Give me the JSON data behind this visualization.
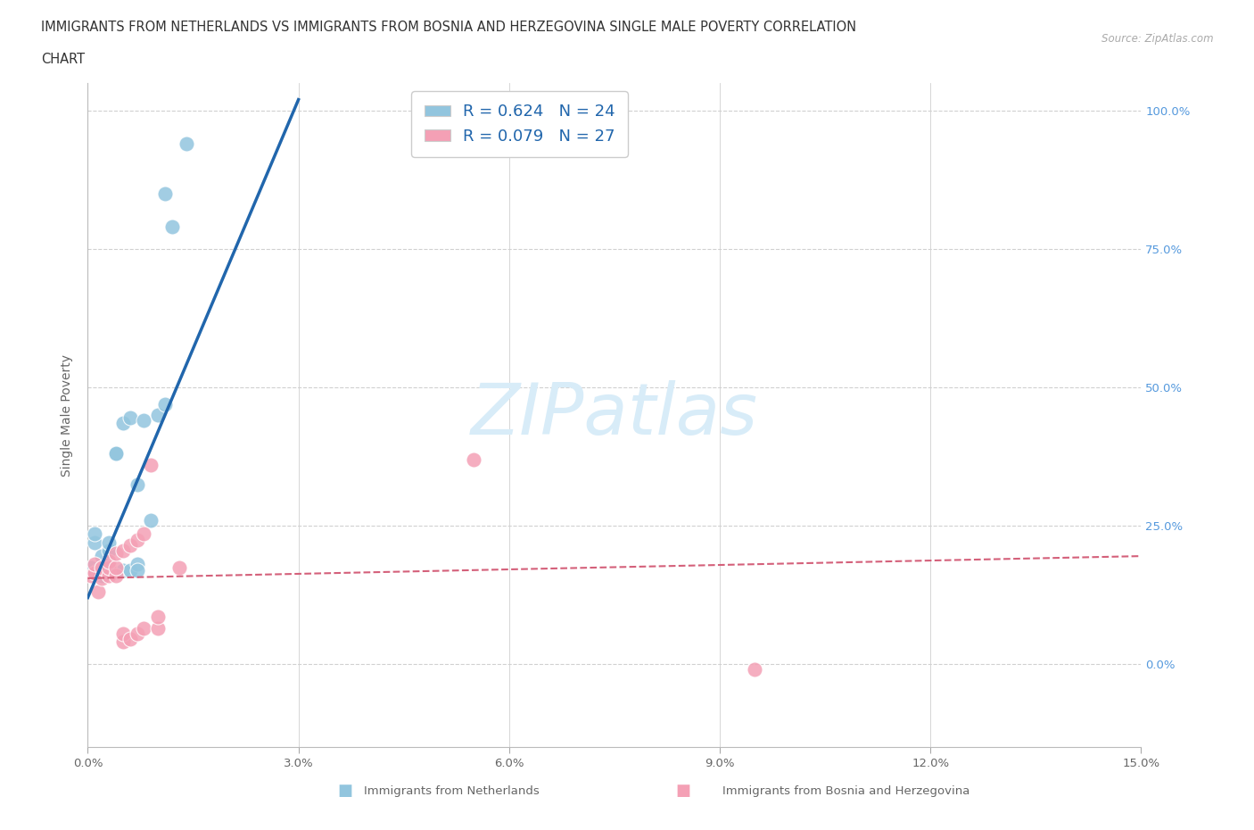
{
  "title_line1": "IMMIGRANTS FROM NETHERLANDS VS IMMIGRANTS FROM BOSNIA AND HERZEGOVINA SINGLE MALE POVERTY CORRELATION",
  "title_line2": "CHART",
  "source": "Source: ZipAtlas.com",
  "ylabel": "Single Male Poverty",
  "blue_label": "Immigrants from Netherlands",
  "pink_label": "Immigrants from Bosnia and Herzegovina",
  "blue_R": 0.624,
  "blue_N": 24,
  "pink_R": 0.079,
  "pink_N": 27,
  "xlim": [
    0.0,
    0.15
  ],
  "ylim": [
    -0.15,
    1.05
  ],
  "yticks": [
    0.0,
    0.25,
    0.5,
    0.75,
    1.0
  ],
  "xticks": [
    0.0,
    0.03,
    0.06,
    0.09,
    0.12,
    0.15
  ],
  "blue_scatter_x": [
    0.0005,
    0.001,
    0.001,
    0.0015,
    0.002,
    0.002,
    0.003,
    0.003,
    0.004,
    0.004,
    0.005,
    0.005,
    0.006,
    0.006,
    0.007,
    0.007,
    0.007,
    0.008,
    0.009,
    0.01,
    0.011,
    0.012,
    0.011,
    0.014
  ],
  "blue_scatter_y": [
    0.175,
    0.22,
    0.235,
    0.17,
    0.16,
    0.195,
    0.205,
    0.22,
    0.38,
    0.38,
    0.435,
    0.17,
    0.445,
    0.17,
    0.18,
    0.17,
    0.325,
    0.44,
    0.26,
    0.45,
    0.47,
    0.79,
    0.85,
    0.94
  ],
  "pink_scatter_x": [
    0.0005,
    0.001,
    0.001,
    0.0015,
    0.002,
    0.002,
    0.003,
    0.003,
    0.003,
    0.004,
    0.004,
    0.004,
    0.005,
    0.005,
    0.005,
    0.006,
    0.006,
    0.007,
    0.007,
    0.008,
    0.008,
    0.009,
    0.01,
    0.01,
    0.013,
    0.055,
    0.095
  ],
  "pink_scatter_y": [
    0.16,
    0.165,
    0.18,
    0.13,
    0.155,
    0.175,
    0.16,
    0.175,
    0.185,
    0.16,
    0.175,
    0.2,
    0.04,
    0.055,
    0.205,
    0.045,
    0.215,
    0.055,
    0.225,
    0.235,
    0.065,
    0.36,
    0.065,
    0.085,
    0.175,
    0.37,
    -0.01
  ],
  "blue_line_x": [
    0.0,
    0.03
  ],
  "blue_line_y": [
    0.12,
    1.02
  ],
  "pink_line_x": [
    0.0,
    0.15
  ],
  "pink_line_y": [
    0.155,
    0.195
  ],
  "blue_color": "#92c5de",
  "pink_color": "#f4a0b5",
  "blue_line_color": "#2166ac",
  "pink_line_color": "#d4607a",
  "watermark": "ZIPatlas",
  "watermark_color": "#d8ecf8",
  "background_color": "#ffffff",
  "grid_color": "#d0d0d0",
  "legend_text_color": "#2166ac"
}
